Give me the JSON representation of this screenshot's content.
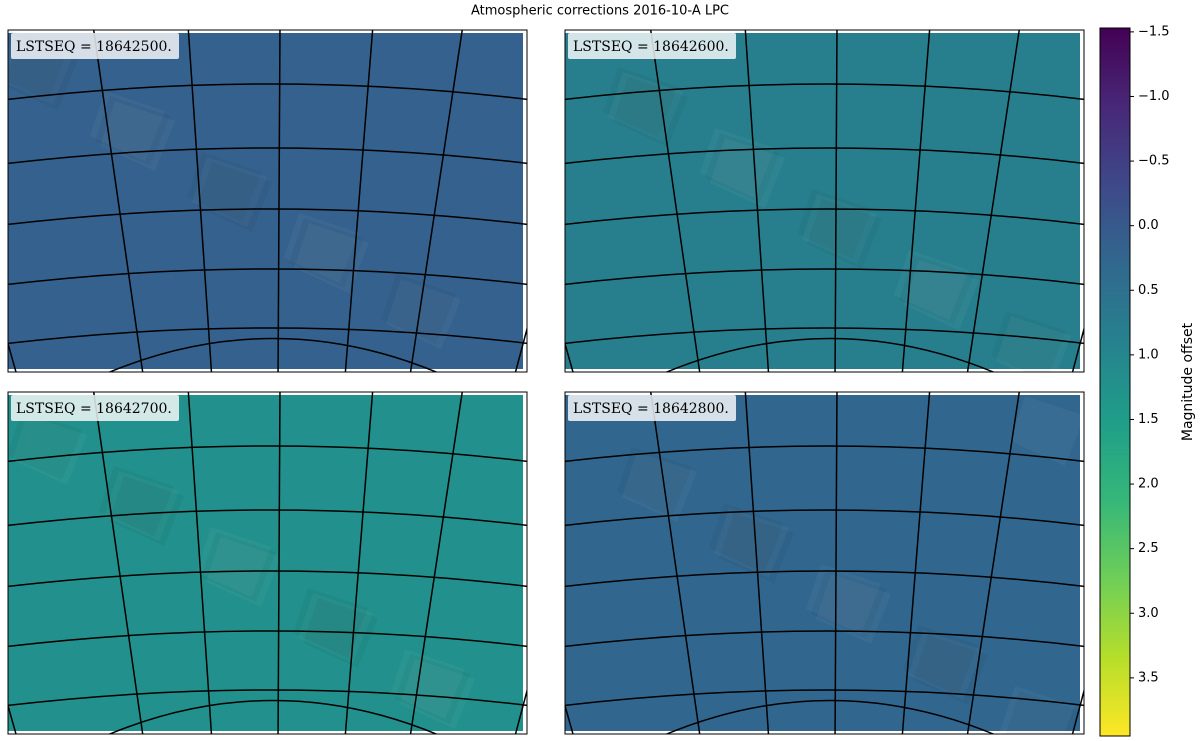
{
  "chart_data": {
    "type": "map-panels",
    "title": "Atmospheric corrections 2016-10-A LPC",
    "panels": [
      {
        "label": "LSTSEQ = 18642500.",
        "color": "#34618d"
      },
      {
        "label": "LSTSEQ = 18642600.",
        "color": "#277f8e"
      },
      {
        "label": "LSTSEQ = 18642700.",
        "color": "#22908c"
      },
      {
        "label": "LSTSEQ = 18642800.",
        "color": "#31668e"
      }
    ],
    "colorbar": {
      "label": "Magnitude offset",
      "colormap": "viridis",
      "reversed": true,
      "ylim": [
        -1.53,
        3.95
      ],
      "yticks": [
        {
          "value": -1.5,
          "label": "−1.5"
        },
        {
          "value": -1.0,
          "label": "−1.0"
        },
        {
          "value": -0.5,
          "label": "−0.5"
        },
        {
          "value": 0.0,
          "label": "0.0"
        },
        0.5,
        {
          "value": 1.0,
          "label": "1.0"
        },
        1.5,
        {
          "value": 2.0,
          "label": "2.0"
        },
        2.5,
        {
          "value": 3.0,
          "label": "3.0"
        },
        3.5
      ]
    }
  }
}
